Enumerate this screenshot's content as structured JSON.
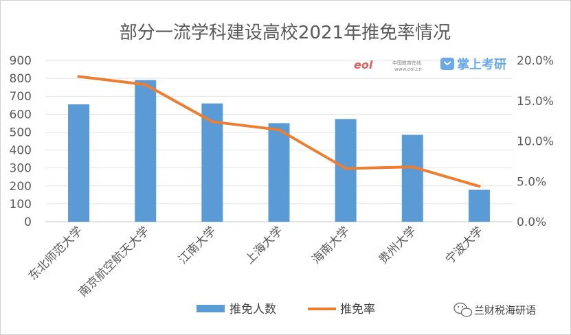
{
  "chart_data": {
    "type": "bar",
    "title": "部分一流学科建设高校2021年推免率情况",
    "categories": [
      "东北师范大学",
      "南京航空航天大学",
      "江南大学",
      "上海大学",
      "海南大学",
      "贵州大学",
      "宁波大学"
    ],
    "series": [
      {
        "name": "推免人数",
        "type": "bar",
        "axis": "left",
        "color": "#5b9bd5",
        "values": [
          655,
          790,
          660,
          550,
          573,
          485,
          178
        ]
      },
      {
        "name": "推免率",
        "type": "line",
        "axis": "right",
        "color": "#ed7d31",
        "values": [
          0.18,
          0.17,
          0.124,
          0.114,
          0.066,
          0.068,
          0.044
        ]
      }
    ],
    "y_left": {
      "min": 0,
      "max": 900,
      "step": 100,
      "ticks": [
        "0",
        "100",
        "200",
        "300",
        "400",
        "500",
        "600",
        "700",
        "800",
        "900"
      ]
    },
    "y_right": {
      "min": 0,
      "max": 0.2,
      "step": 0.05,
      "ticks": [
        "0.0%",
        "5.0%",
        "10.0%",
        "15.0%",
        "20.0%"
      ]
    },
    "grid": true,
    "legend": "bottom"
  },
  "watermark": {
    "logo": "eol",
    "site_cn": "中国教育在线",
    "site_url": "www.eol.cn",
    "brand": "掌上考研"
  },
  "credit": {
    "icon": "wechat-icon",
    "text": "兰财税海研语"
  }
}
